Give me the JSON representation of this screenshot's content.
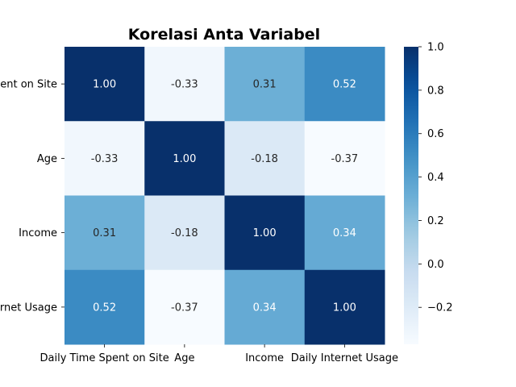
{
  "chart_data": {
    "type": "heatmap",
    "title": "Korelasi Anta Variabel",
    "x_labels": [
      "Daily Time Spent on Site",
      "Age",
      "Income",
      "Daily Internet Usage"
    ],
    "y_labels": [
      "Daily Time Spent on Site",
      "Age",
      "Income",
      "Daily Internet Usage"
    ],
    "values": [
      [
        1.0,
        -0.33,
        0.31,
        0.52
      ],
      [
        -0.33,
        1.0,
        -0.18,
        -0.37
      ],
      [
        0.31,
        -0.18,
        1.0,
        0.34
      ],
      [
        0.52,
        -0.37,
        0.34,
        1.0
      ]
    ],
    "value_format": "0.00",
    "colormap": "Blues",
    "colorbar": {
      "range": [
        -0.37,
        1.0
      ],
      "ticks": [
        1.0,
        0.8,
        0.6,
        0.4,
        0.2,
        0.0,
        -0.2
      ],
      "tick_labels": [
        "1.0",
        "0.8",
        "0.6",
        "0.4",
        "0.2",
        "0.0",
        "−0.2"
      ]
    }
  }
}
